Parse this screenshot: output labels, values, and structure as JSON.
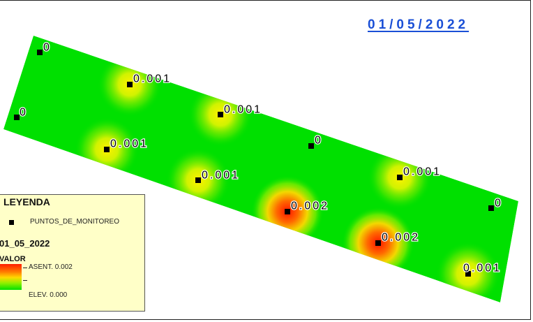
{
  "map": {
    "date_title": "01/05/2022",
    "points": [
      {
        "id": "p1",
        "label": "0",
        "value": 0
      },
      {
        "id": "p2",
        "label": "0.001",
        "value": 0.001
      },
      {
        "id": "p3",
        "label": "0",
        "value": 0
      },
      {
        "id": "p4",
        "label": "0.001",
        "value": 0.001
      },
      {
        "id": "p5",
        "label": "0.001",
        "value": 0.001
      },
      {
        "id": "p6",
        "label": "0",
        "value": 0
      },
      {
        "id": "p7",
        "label": "0.001",
        "value": 0.001
      },
      {
        "id": "p8",
        "label": "0.002",
        "value": 0.002
      },
      {
        "id": "p9",
        "label": "0.001",
        "value": 0.001
      },
      {
        "id": "p10",
        "label": "0.002",
        "value": 0.002
      },
      {
        "id": "p11",
        "label": "0",
        "value": 0
      },
      {
        "id": "p12",
        "label": "0.001",
        "value": 0.001
      }
    ]
  },
  "legend": {
    "title": "LEYENDA",
    "point_layer_label": "PUNTOS_DE_MONITOREO",
    "raster_layer_label": "01_05_2022",
    "field_label": "VALOR",
    "max_label": "ASENT. 0.002",
    "min_label": "ELEV. 0.000"
  },
  "colors": {
    "low": "#00e000",
    "mid": "#ffd800",
    "high": "#ff1e00",
    "title_blue": "#1a4fd6",
    "legend_bg": "#ffffc8"
  }
}
